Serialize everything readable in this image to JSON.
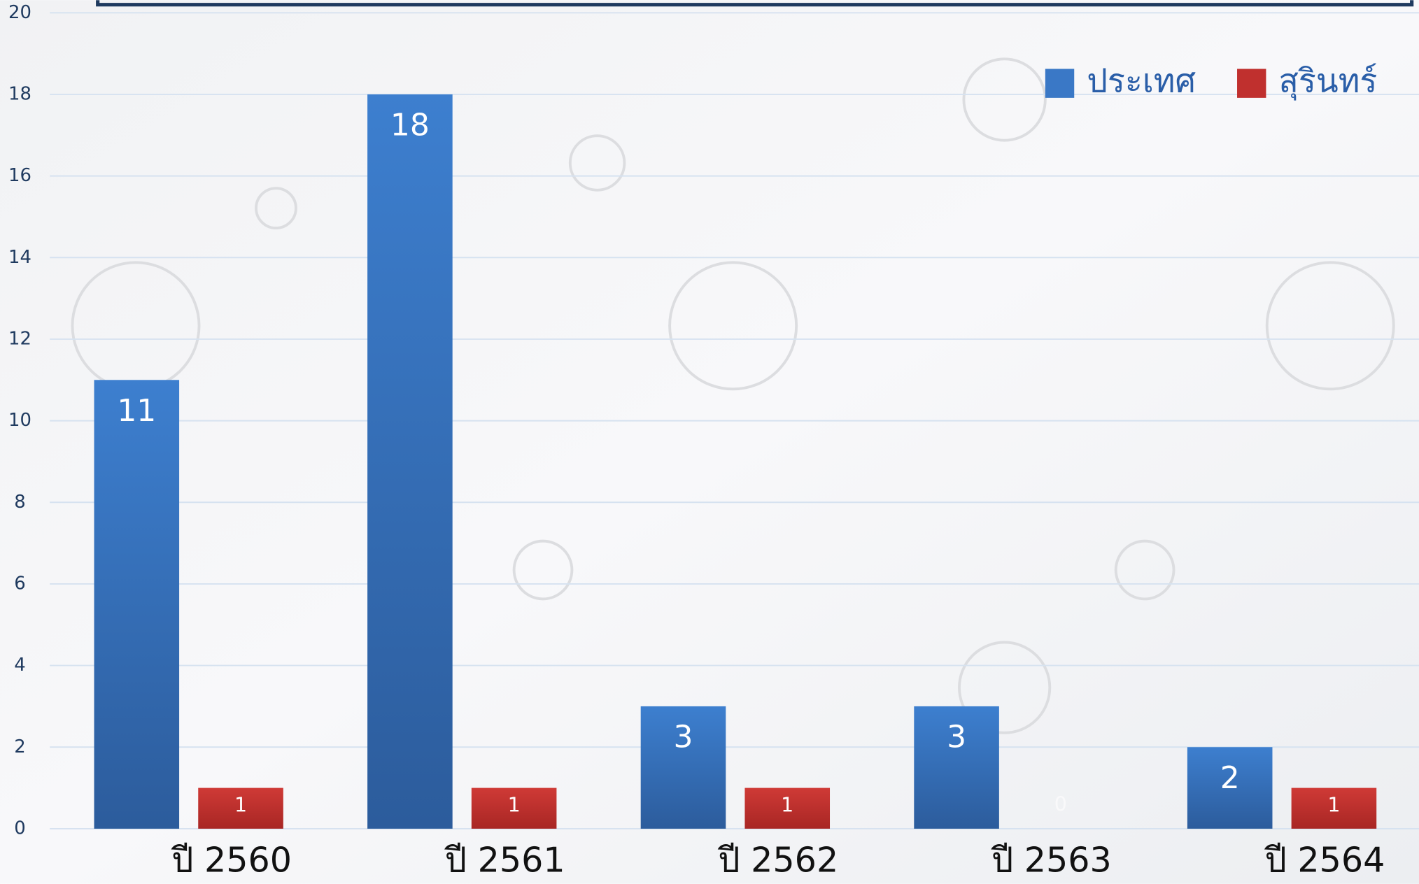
{
  "chart_data": {
    "type": "bar",
    "categories": [
      "ปี 2560",
      "ปี 2561",
      "ปี 2562",
      "ปี 2563",
      "ปี 2564"
    ],
    "series": [
      {
        "name": "ประเทศ",
        "color": "#3a78c6",
        "values": [
          11,
          18,
          3,
          3,
          2
        ]
      },
      {
        "name": "สุรินทร์",
        "color": "#c0302e",
        "values": [
          1,
          1,
          1,
          0,
          1
        ]
      }
    ],
    "ylim": [
      0,
      20
    ],
    "yticks": [
      0,
      2,
      4,
      6,
      8,
      10,
      12,
      14,
      16,
      18,
      20
    ],
    "grid": true,
    "legend": "top-right"
  }
}
